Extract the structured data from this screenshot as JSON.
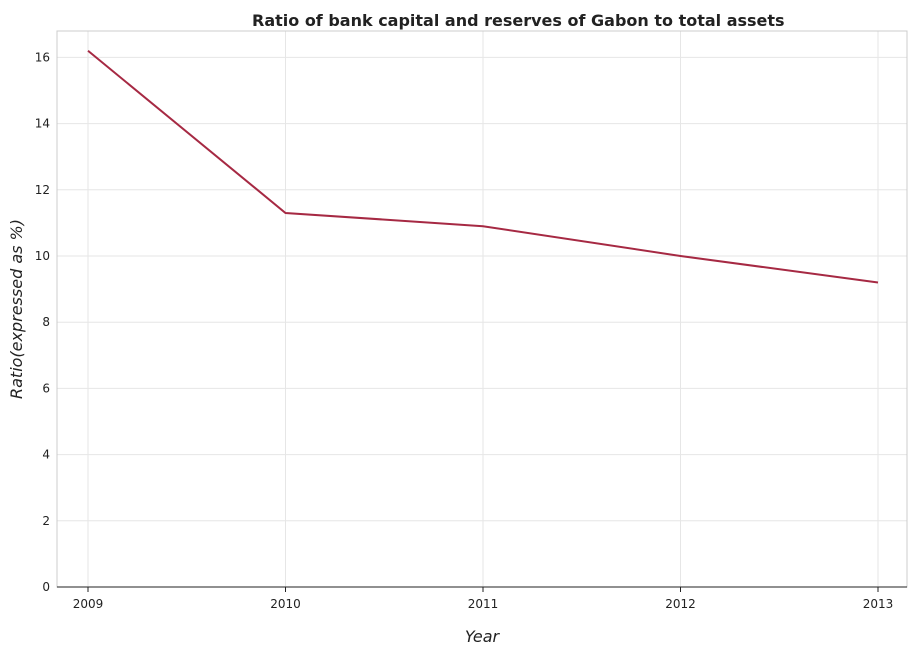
{
  "chart_data": {
    "type": "line",
    "title": "Ratio of bank capital and reserves of Gabon to total assets",
    "xlabel": "Year",
    "ylabel": "Ratio(expressed as %)",
    "categories": [
      "2009",
      "2010",
      "2011",
      "2012",
      "2013"
    ],
    "values": [
      16.2,
      11.3,
      10.9,
      10.0,
      9.2
    ],
    "ylim": [
      0,
      16.6
    ],
    "yticks": [
      0,
      2,
      4,
      6,
      8,
      10,
      12,
      14,
      16
    ],
    "grid": true,
    "line_color": "#a62943"
  }
}
